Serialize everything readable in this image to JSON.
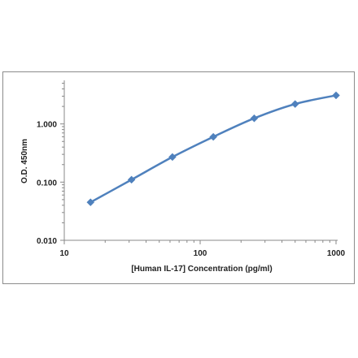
{
  "chart_data": {
    "type": "line",
    "title": "",
    "xlabel": "[Human IL-17] Concentration (pg/ml)",
    "ylabel": "O.D. 450nm",
    "x_scale": "log",
    "y_scale": "log",
    "xlim": [
      10,
      1000
    ],
    "ylim": [
      0.01,
      10
    ],
    "x_ticks": [
      "10",
      "100",
      "1000"
    ],
    "y_ticks": [
      "0.010",
      "0.100",
      "1.000"
    ],
    "grid": false,
    "legend": "none",
    "marker": "diamond",
    "series": [
      {
        "color": "#4f81bd",
        "x": [
          15.6,
          31.25,
          62.5,
          125,
          250,
          500,
          1000
        ],
        "y": [
          0.045,
          0.11,
          0.27,
          0.6,
          1.25,
          2.2,
          3.1
        ]
      }
    ]
  }
}
